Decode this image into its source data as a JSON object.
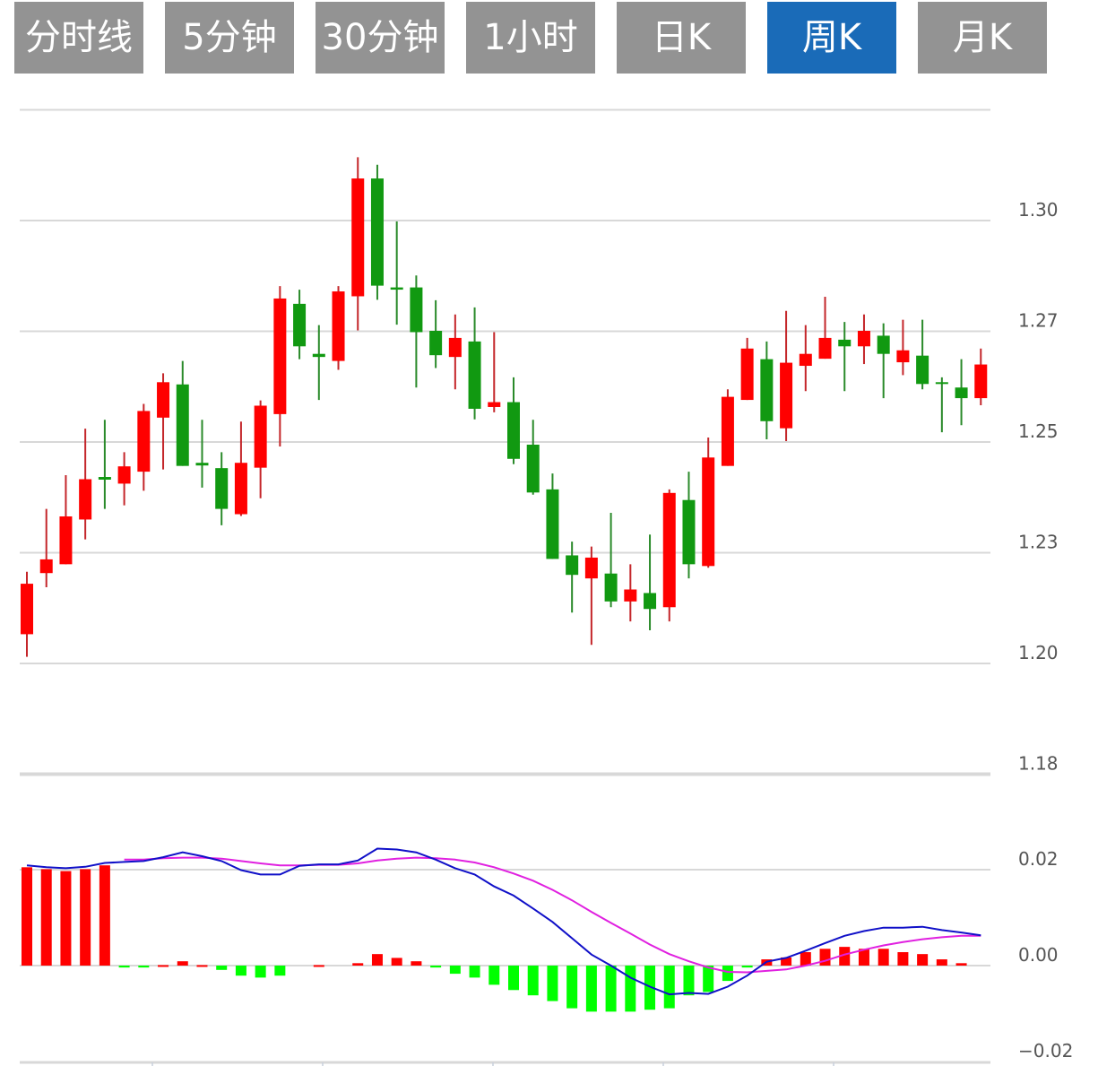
{
  "tabs": [
    {
      "label": "分时线",
      "active": false
    },
    {
      "label": "5分钟",
      "active": false
    },
    {
      "label": "30分钟",
      "active": false
    },
    {
      "label": "1小时",
      "active": false
    },
    {
      "label": "日K",
      "active": false
    },
    {
      "label": "周K",
      "active": true
    },
    {
      "label": "月K",
      "active": false
    }
  ],
  "colors": {
    "up": "#ff0000",
    "up_wick": "#c4262a",
    "down": "#119911",
    "down_wick": "#2a8a2a",
    "hist_up": "#ff0000",
    "hist_down": "#00ff00",
    "dif": "#1010c8",
    "dea": "#e020e0",
    "tab": "#939393",
    "tab_active": "#1a6bb8",
    "grid": "#d8d8d8"
  },
  "chart_data": [
    {
      "type": "candlestick",
      "title": "周K",
      "ylim": [
        1.175,
        1.325
      ],
      "yticks": [
        {
          "value": 1.3,
          "label": "1.30"
        },
        {
          "value": 1.275,
          "label": "1.27"
        },
        {
          "value": 1.25,
          "label": "1.25"
        },
        {
          "value": 1.225,
          "label": "1.23"
        },
        {
          "value": 1.2,
          "label": "1.20"
        },
        {
          "value": 1.175,
          "label": "1.18"
        }
      ],
      "grid": true,
      "ohlc_fields": [
        "open",
        "high",
        "low",
        "close"
      ],
      "candles": [
        [
          1.2066,
          1.2207,
          1.2015,
          1.218
        ],
        [
          1.2204,
          1.2349,
          1.2172,
          1.2235
        ],
        [
          1.2224,
          1.2425,
          1.2224,
          1.2332
        ],
        [
          1.2325,
          1.253,
          1.228,
          1.2416
        ],
        [
          1.2421,
          1.255,
          1.2349,
          1.2415
        ],
        [
          1.2406,
          1.2477,
          1.2357,
          1.2445
        ],
        [
          1.2433,
          1.2586,
          1.239,
          1.257
        ],
        [
          1.2555,
          1.2655,
          1.2438,
          1.2635
        ],
        [
          1.263,
          1.2683,
          1.2446,
          1.2446
        ],
        [
          1.2453,
          1.255,
          1.2397,
          1.2447
        ],
        [
          1.2441,
          1.2477,
          1.2312,
          1.2349
        ],
        [
          1.2337,
          1.2546,
          1.2333,
          1.2453
        ],
        [
          1.2442,
          1.2594,
          1.2373,
          1.2582
        ],
        [
          1.2563,
          1.2852,
          1.249,
          1.2824
        ],
        [
          1.2812,
          1.2844,
          1.2687,
          1.2716
        ],
        [
          1.2699,
          1.2764,
          1.2595,
          1.2692
        ],
        [
          1.2683,
          1.2852,
          1.2663,
          1.284
        ],
        [
          1.2829,
          1.3143,
          1.2752,
          1.3095
        ],
        [
          1.3095,
          1.3126,
          1.2821,
          1.2853
        ],
        [
          1.2849,
          1.2998,
          1.2765,
          1.2844
        ],
        [
          1.2849,
          1.2876,
          1.2623,
          1.2748
        ],
        [
          1.2751,
          1.282,
          1.2667,
          1.2696
        ],
        [
          1.2692,
          1.2788,
          1.2619,
          1.2735
        ],
        [
          1.2727,
          1.2804,
          1.2551,
          1.2575
        ],
        [
          1.2579,
          1.2748,
          1.2567,
          1.259
        ],
        [
          1.259,
          1.2646,
          1.245,
          1.2462
        ],
        [
          1.2494,
          1.255,
          1.2381,
          1.2386
        ],
        [
          1.2393,
          1.2429,
          1.2236,
          1.2236
        ],
        [
          1.2244,
          1.2275,
          1.2115,
          1.22
        ],
        [
          1.2192,
          1.2264,
          1.2042,
          1.2239
        ],
        [
          1.2203,
          1.234,
          1.2127,
          1.214
        ],
        [
          1.214,
          1.2224,
          1.2095,
          1.2167
        ],
        [
          1.2159,
          1.2291,
          1.2075,
          1.2123
        ],
        [
          1.2127,
          1.2393,
          1.2095,
          1.2385
        ],
        [
          1.2369,
          1.2433,
          1.2192,
          1.2224
        ],
        [
          1.222,
          1.251,
          1.2216,
          1.2465
        ],
        [
          1.2446,
          1.2619,
          1.2446,
          1.2602
        ],
        [
          1.2595,
          1.2735,
          1.2595,
          1.2711
        ],
        [
          1.2687,
          1.2727,
          1.2506,
          1.2547
        ],
        [
          1.2531,
          1.2796,
          1.2502,
          1.2679
        ],
        [
          1.2672,
          1.2764,
          1.2615,
          1.2699
        ],
        [
          1.2688,
          1.2828,
          1.2688,
          1.2735
        ],
        [
          1.2731,
          1.2771,
          1.2615,
          1.2716
        ],
        [
          1.2716,
          1.2788,
          1.2676,
          1.2751
        ],
        [
          1.274,
          1.2768,
          1.2599,
          1.2699
        ],
        [
          1.268,
          1.2776,
          1.2651,
          1.2707
        ],
        [
          1.2695,
          1.2776,
          1.2619,
          1.2631
        ],
        [
          1.2635,
          1.2646,
          1.2522,
          1.2631
        ],
        [
          1.2623,
          1.2687,
          1.2538,
          1.2599
        ],
        [
          1.2599,
          1.2711,
          1.2583,
          1.2675
        ]
      ]
    },
    {
      "type": "macd",
      "ylim": [
        -0.02,
        0.02
      ],
      "yticks": [
        {
          "value": 0.02,
          "label": "0.02"
        },
        {
          "value": 0.0,
          "label": "0.00"
        },
        {
          "value": -0.02,
          "label": "−0.02"
        }
      ],
      "xtick_count": 5,
      "histogram": [
        0.0205,
        0.0201,
        0.0197,
        0.0201,
        0.0209,
        -0.0004,
        -0.0004,
        0.0001,
        0.0009,
        0.0001,
        -0.0009,
        -0.0021,
        -0.0025,
        -0.0021,
        0,
        0.0001,
        0,
        0.0005,
        0.0024,
        0.0016,
        0.0009,
        -0.0004,
        -0.0017,
        -0.0025,
        -0.004,
        -0.0051,
        -0.0062,
        -0.0074,
        -0.0089,
        -0.0096,
        -0.0096,
        -0.0096,
        -0.0092,
        -0.0089,
        -0.0062,
        -0.0055,
        -0.0032,
        -0.0004,
        0.0013,
        0.0017,
        0.0028,
        0.0035,
        0.0039,
        0.0035,
        0.0035,
        0.0028,
        0.0024,
        0.0013,
        0.0005,
        0
      ],
      "dif": [
        0.0209,
        0.0205,
        0.0203,
        0.0206,
        0.0214,
        0.0216,
        0.0218,
        0.0226,
        0.0236,
        0.0228,
        0.0218,
        0.0199,
        0.019,
        0.019,
        0.0208,
        0.0211,
        0.0211,
        0.0219,
        0.0244,
        0.0242,
        0.0236,
        0.0221,
        0.0203,
        0.019,
        0.0165,
        0.0146,
        0.0119,
        0.0091,
        0.0057,
        0.0023,
        0,
        -0.0025,
        -0.0044,
        -0.006,
        -0.0057,
        -0.0059,
        -0.0044,
        -0.0021,
        0.0008,
        0.0016,
        0.0031,
        0.0047,
        0.0062,
        0.0072,
        0.0079,
        0.0079,
        0.0081,
        0.0074,
        0.0069,
        0.0063
      ],
      "dea": [
        null,
        null,
        null,
        null,
        null,
        0.0221,
        0.0221,
        0.0224,
        0.0225,
        0.0225,
        0.0223,
        0.0218,
        0.0213,
        0.0209,
        0.0209,
        0.021,
        0.021,
        0.0213,
        0.0219,
        0.0223,
        0.0225,
        0.0224,
        0.0221,
        0.0215,
        0.0205,
        0.0192,
        0.0177,
        0.0158,
        0.0136,
        0.0112,
        0.0089,
        0.0067,
        0.0044,
        0.0024,
        0.0009,
        -0.0004,
        -0.0013,
        -0.0014,
        -0.0011,
        -0.0008,
        0,
        0.001,
        0.0023,
        0.0033,
        0.0042,
        0.0049,
        0.0055,
        0.0059,
        0.0062,
        0.0062
      ]
    }
  ]
}
